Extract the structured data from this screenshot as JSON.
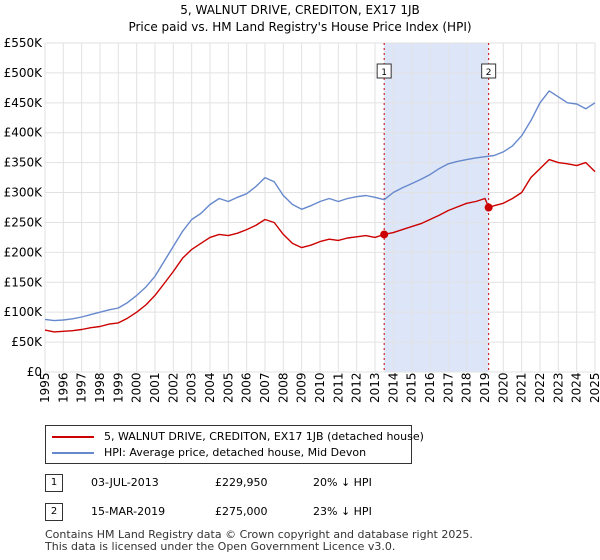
{
  "chart_data": {
    "type": "line",
    "title": "5, WALNUT DRIVE, CREDITON, EX17 1JB",
    "subtitle": "Price paid vs. HM Land Registry's House Price Index (HPI)",
    "xlabel": "",
    "ylabel": "",
    "xlim": [
      1995,
      2025
    ],
    "ylim": [
      0,
      550000
    ],
    "y_ticks": [
      0,
      50000,
      100000,
      150000,
      200000,
      250000,
      300000,
      350000,
      400000,
      450000,
      500000,
      550000
    ],
    "y_tick_labels": [
      "£0",
      "£50K",
      "£100K",
      "£150K",
      "£200K",
      "£250K",
      "£300K",
      "£350K",
      "£400K",
      "£450K",
      "£500K",
      "£550K"
    ],
    "x_ticks": [
      1995,
      1996,
      1997,
      1998,
      1999,
      2000,
      2001,
      2002,
      2003,
      2004,
      2005,
      2006,
      2007,
      2008,
      2009,
      2010,
      2011,
      2012,
      2013,
      2014,
      2015,
      2016,
      2017,
      2018,
      2019,
      2020,
      2021,
      2022,
      2023,
      2024,
      2025
    ],
    "x_tick_labels": [
      "1995",
      "1996",
      "1997",
      "1998",
      "1999",
      "2000",
      "2001",
      "2002",
      "2003",
      "2004",
      "2005",
      "2006",
      "2007",
      "2008",
      "2009",
      "2010",
      "2011",
      "2012",
      "2013",
      "2014",
      "2015",
      "2016",
      "2017",
      "2018",
      "2019",
      "2020",
      "2021",
      "2022",
      "2023",
      "2024",
      "2025"
    ],
    "grid": true,
    "shaded_region": {
      "x": [
        2013.5,
        2019.2
      ],
      "color": "#dde6f8"
    },
    "series": [
      {
        "name": "5, WALNUT DRIVE, CREDITON, EX17 1JB (detached house)",
        "color": "#cc0000",
        "x": [
          1995.0,
          1995.5,
          1996.0,
          1996.5,
          1997.0,
          1997.5,
          1998.0,
          1998.5,
          1999.0,
          1999.5,
          2000.0,
          2000.5,
          2001.0,
          2001.5,
          2002.0,
          2002.5,
          2003.0,
          2003.5,
          2004.0,
          2004.5,
          2005.0,
          2005.5,
          2006.0,
          2006.5,
          2007.0,
          2007.5,
          2008.0,
          2008.5,
          2009.0,
          2009.5,
          2010.0,
          2010.5,
          2011.0,
          2011.5,
          2012.0,
          2012.5,
          2013.0,
          2013.5,
          2014.0,
          2014.5,
          2015.0,
          2015.5,
          2016.0,
          2016.5,
          2017.0,
          2017.5,
          2018.0,
          2018.5,
          2019.0,
          2019.2,
          2019.5,
          2020.0,
          2020.5,
          2021.0,
          2021.5,
          2022.0,
          2022.5,
          2023.0,
          2023.5,
          2024.0,
          2024.5,
          2025.0
        ],
        "values": [
          70000,
          67000,
          68000,
          69000,
          71000,
          74000,
          76000,
          80000,
          82000,
          90000,
          100000,
          112000,
          128000,
          148000,
          168000,
          190000,
          205000,
          215000,
          225000,
          230000,
          228000,
          232000,
          238000,
          245000,
          255000,
          250000,
          230000,
          215000,
          208000,
          212000,
          218000,
          222000,
          220000,
          224000,
          226000,
          228000,
          225000,
          229950,
          233000,
          238000,
          243000,
          248000,
          255000,
          262000,
          270000,
          276000,
          282000,
          285000,
          290000,
          275000,
          278000,
          282000,
          290000,
          300000,
          325000,
          340000,
          355000,
          350000,
          348000,
          345000,
          350000,
          335000
        ]
      },
      {
        "name": "HPI: Average price, detached house, Mid Devon",
        "color": "#6688cc",
        "x": [
          1995.0,
          1995.5,
          1996.0,
          1996.5,
          1997.0,
          1997.5,
          1998.0,
          1998.5,
          1999.0,
          1999.5,
          2000.0,
          2000.5,
          2001.0,
          2001.5,
          2002.0,
          2002.5,
          2003.0,
          2003.5,
          2004.0,
          2004.5,
          2005.0,
          2005.5,
          2006.0,
          2006.5,
          2007.0,
          2007.5,
          2008.0,
          2008.5,
          2009.0,
          2009.5,
          2010.0,
          2010.5,
          2011.0,
          2011.5,
          2012.0,
          2012.5,
          2013.0,
          2013.5,
          2014.0,
          2014.5,
          2015.0,
          2015.5,
          2016.0,
          2016.5,
          2017.0,
          2017.5,
          2018.0,
          2018.5,
          2019.0,
          2019.5,
          2020.0,
          2020.5,
          2021.0,
          2021.5,
          2022.0,
          2022.5,
          2023.0,
          2023.5,
          2024.0,
          2024.5,
          2025.0
        ],
        "values": [
          88000,
          86000,
          87000,
          89000,
          92000,
          96000,
          100000,
          104000,
          107000,
          116000,
          128000,
          142000,
          160000,
          185000,
          210000,
          235000,
          255000,
          265000,
          280000,
          290000,
          285000,
          292000,
          298000,
          310000,
          325000,
          318000,
          295000,
          280000,
          272000,
          278000,
          285000,
          290000,
          285000,
          290000,
          293000,
          295000,
          292000,
          288000,
          300000,
          308000,
          315000,
          322000,
          330000,
          340000,
          348000,
          352000,
          355000,
          358000,
          360000,
          362000,
          368000,
          378000,
          395000,
          420000,
          450000,
          470000,
          460000,
          450000,
          448000,
          440000,
          450000
        ]
      }
    ],
    "markers": [
      {
        "label": "1",
        "x": 2013.5,
        "y": 229950,
        "color": "#cc0000"
      },
      {
        "label": "2",
        "x": 2019.2,
        "y": 275000,
        "color": "#cc0000"
      }
    ]
  },
  "legend": [
    {
      "label": "5, WALNUT DRIVE, CREDITON, EX17 1JB (detached house)",
      "color": "#cc0000"
    },
    {
      "label": "HPI: Average price, detached house, Mid Devon",
      "color": "#6688cc"
    }
  ],
  "transactions": [
    {
      "num": "1",
      "date": "03-JUL-2013",
      "price": "£229,950",
      "hpi": "20% ↓ HPI"
    },
    {
      "num": "2",
      "date": "15-MAR-2019",
      "price": "£275,000",
      "hpi": "23% ↓ HPI"
    }
  ],
  "footer": {
    "line1": "Contains HM Land Registry data © Crown copyright and database right 2025.",
    "line2": "This data is licensed under the Open Government Licence v3.0."
  }
}
